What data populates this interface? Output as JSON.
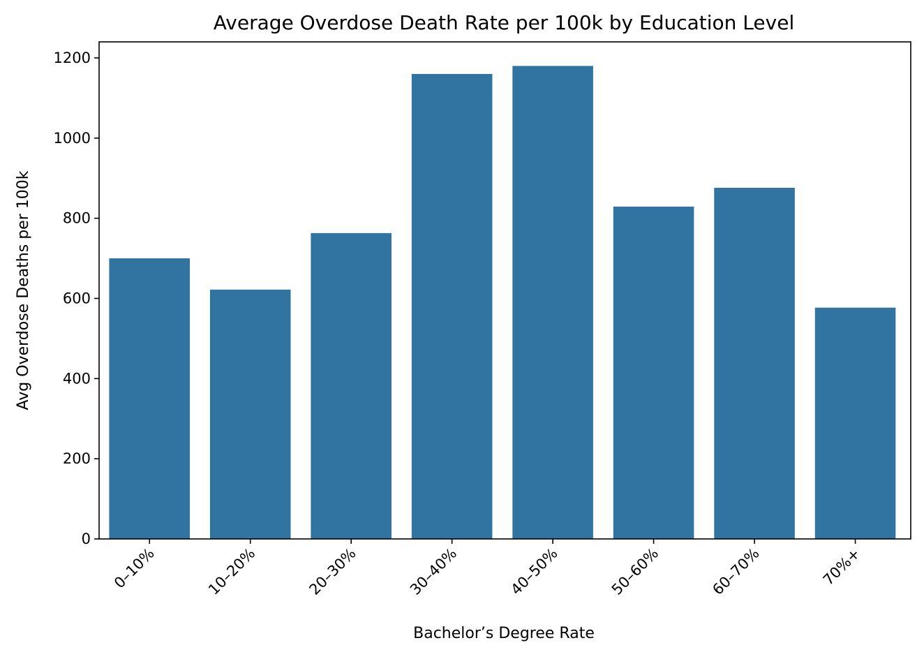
{
  "chart_data": {
    "type": "bar",
    "title": "Average Overdose Death Rate per 100k by Education Level",
    "xlabel": "Bachelor’s Degree Rate",
    "ylabel": "Avg Overdose Deaths per 100k",
    "categories": [
      "0–10%",
      "10–20%",
      "20–30%",
      "30–40%",
      "40–50%",
      "50–60%",
      "60–70%",
      "70%+"
    ],
    "values": [
      700,
      622,
      763,
      1160,
      1180,
      829,
      876,
      577
    ],
    "ylim": [
      0,
      1240
    ],
    "yticks": [
      0,
      200,
      400,
      600,
      800,
      1000,
      1200
    ],
    "grid": false,
    "bar_color": "#3274a1",
    "x_tick_rotation_deg": 45
  }
}
